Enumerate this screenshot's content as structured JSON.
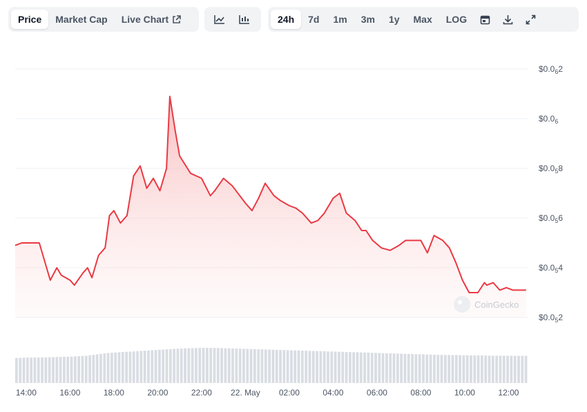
{
  "toolbar": {
    "view_tabs": [
      "Price",
      "Market Cap",
      "Live Chart"
    ],
    "active_view": "Price",
    "chart_type_icons": [
      "line-chart-icon",
      "candlestick-chart-icon"
    ],
    "ranges": [
      "24h",
      "7d",
      "1m",
      "3m",
      "1y",
      "Max",
      "LOG"
    ],
    "active_range": "24h",
    "action_icons": [
      "calendar-icon",
      "download-icon",
      "expand-icon"
    ]
  },
  "watermark": "CoinGecko",
  "colors": {
    "line": "#ea3943",
    "fill": "#fde2e2",
    "volume": "#d9dde3",
    "grid": "#eef0f3"
  },
  "chart_data": {
    "type": "area",
    "y_ticks": [
      {
        "value": 5.2e-06,
        "label_prefix": "$0.0",
        "sub": "5",
        "label_suffix": "2"
      },
      {
        "value": 5.4e-06,
        "label_prefix": "$0.0",
        "sub": "5",
        "label_suffix": "4"
      },
      {
        "value": 5.6e-06,
        "label_prefix": "$0.0",
        "sub": "5",
        "label_suffix": "6"
      },
      {
        "value": 5.8e-06,
        "label_prefix": "$0.0",
        "sub": "5",
        "label_suffix": "8"
      },
      {
        "value": 6e-06,
        "label_prefix": "$0.0",
        "sub": "6",
        "label_suffix": ""
      },
      {
        "value": 6.2e-06,
        "label_prefix": "$0.0",
        "sub": "6",
        "label_suffix": "2"
      }
    ],
    "ylim": [
      5.2e-06,
      6.2e-06
    ],
    "x_ticks": [
      "14:00",
      "16:00",
      "18:00",
      "20:00",
      "22:00",
      "22. May",
      "02:00",
      "04:00",
      "06:00",
      "08:00",
      "10:00",
      "12:00"
    ],
    "x_hours": [
      13.5,
      13.8,
      14.2,
      14.6,
      15.0,
      15.1,
      15.4,
      15.6,
      16.0,
      16.2,
      16.6,
      16.8,
      17.0,
      17.3,
      17.6,
      17.8,
      18.0,
      18.3,
      18.6,
      18.9,
      19.2,
      19.5,
      19.8,
      20.1,
      20.4,
      20.55,
      20.8,
      21.0,
      21.5,
      22.0,
      22.4,
      22.6,
      23.0,
      23.4,
      24.0,
      24.3,
      24.6,
      24.9,
      25.3,
      25.6,
      26.0,
      26.3,
      26.6,
      27.0,
      27.3,
      27.6,
      28.0,
      28.3,
      28.6,
      29.0,
      29.3,
      29.5,
      29.8,
      30.2,
      30.6,
      31.0,
      31.3,
      31.6,
      32.0,
      32.3,
      32.6,
      33.0,
      33.3,
      33.6,
      33.9,
      34.2,
      34.6,
      34.9,
      35.0,
      35.3,
      35.6,
      35.9,
      36.2,
      36.5,
      36.8
    ],
    "prices": [
      5.49e-06,
      5.5e-06,
      5.5e-06,
      5.5e-06,
      5.38e-06,
      5.35e-06,
      5.4e-06,
      5.37e-06,
      5.35e-06,
      5.33e-06,
      5.38e-06,
      5.4e-06,
      5.36e-06,
      5.45e-06,
      5.48e-06,
      5.61e-06,
      5.63e-06,
      5.58e-06,
      5.61e-06,
      5.77e-06,
      5.81e-06,
      5.72e-06,
      5.76e-06,
      5.71e-06,
      5.8e-06,
      6.09e-06,
      5.95e-06,
      5.85e-06,
      5.78e-06,
      5.76e-06,
      5.69e-06,
      5.71e-06,
      5.76e-06,
      5.73e-06,
      5.66e-06,
      5.63e-06,
      5.68e-06,
      5.74e-06,
      5.69e-06,
      5.67e-06,
      5.65e-06,
      5.64e-06,
      5.62e-06,
      5.58e-06,
      5.59e-06,
      5.62e-06,
      5.68e-06,
      5.7e-06,
      5.62e-06,
      5.59e-06,
      5.55e-06,
      5.55e-06,
      5.51e-06,
      5.48e-06,
      5.47e-06,
      5.49e-06,
      5.51e-06,
      5.51e-06,
      5.51e-06,
      5.46e-06,
      5.53e-06,
      5.51e-06,
      5.48e-06,
      5.42e-06,
      5.35e-06,
      5.3e-06,
      5.3e-06,
      5.34e-06,
      5.33e-06,
      5.34e-06,
      5.31e-06,
      5.32e-06,
      5.31e-06,
      5.31e-06,
      5.31e-06
    ],
    "volume_relative": [
      0.7,
      0.71,
      0.71,
      0.72,
      0.73,
      0.74,
      0.76,
      0.8,
      0.84,
      0.86,
      0.88,
      0.9,
      0.92,
      0.94,
      0.96,
      0.97,
      0.98,
      0.98,
      0.97,
      0.96,
      0.95,
      0.94,
      0.93,
      0.92,
      0.91,
      0.9,
      0.89,
      0.88,
      0.87,
      0.86,
      0.85,
      0.84,
      0.83,
      0.82,
      0.81,
      0.8,
      0.79,
      0.78,
      0.78,
      0.77,
      0.77,
      0.76,
      0.76,
      0.76,
      0.76
    ]
  }
}
